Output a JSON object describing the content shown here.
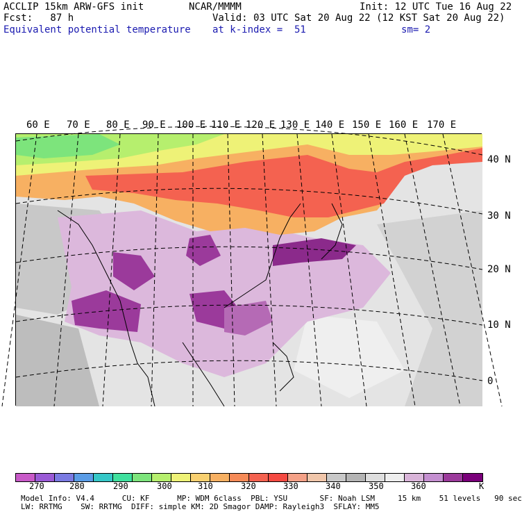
{
  "header": {
    "left": [
      "ACCLIP 15km ARW-GFS init",
      "Fcst:   87 h"
    ],
    "field": "Equivalent potential temperature",
    "center_top": "NCAR/MMMM",
    "init": "Init: 12 UTC Tue 16 Aug 22",
    "valid": "Valid: 03 UTC Sat 20 Aug 22 (12 KST Sat 20 Aug 22)",
    "level": "at k-index =  51",
    "smooth": "sm= 2"
  },
  "map": {
    "lon_labels": [
      "60 E",
      "70 E",
      "80 E",
      "90 E",
      "100 E",
      "110 E",
      "120 E",
      "130 E",
      "140 E",
      "150 E",
      "160 E",
      "170 E"
    ],
    "lat_labels": [
      "40 N",
      "30 N",
      "20 N",
      "10 N",
      "0"
    ]
  },
  "colorbar": {
    "colors": [
      "#c85ac8",
      "#9a5ad6",
      "#7a7ae2",
      "#5a9ce6",
      "#35c7c7",
      "#3fe09e",
      "#7de47c",
      "#b6ef6e",
      "#eef277",
      "#f8d070",
      "#f7b062",
      "#f58a57",
      "#f46250",
      "#f44a42",
      "#f4a187",
      "#f0c6aa",
      "#c8c8c8",
      "#b4b4b4",
      "#dedede",
      "#eeeeee",
      "#d9b4d9",
      "#c48fd0",
      "#9b3a9b",
      "#7a007a"
    ],
    "labels": [
      "270",
      "280",
      "290",
      "300",
      "310",
      "320",
      "330",
      "340",
      "350",
      "360"
    ],
    "unit": "K"
  },
  "footer": {
    "line1": "Model Info: V4.4      CU: KF      MP: WDM 6class  PBL: YSU       SF: Noah LSM     15 km    51 levels   90 sec",
    "line2": "LW: RRTMG    SW: RRTMG  DIFF: simple KM: 2D Smagor DAMP: Rayleigh3  SFLAY: MM5"
  }
}
